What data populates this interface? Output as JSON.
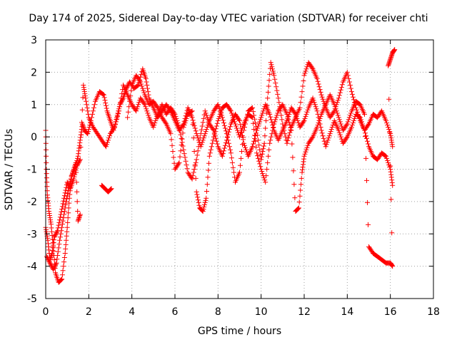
{
  "chart_data": {
    "type": "scatter",
    "title": "Day 174 of 2025, Sidereal Day-to-day VTEC variation (SDTVAR) for receiver chti",
    "xlabel": "GPS time / hours",
    "ylabel": "SDTVAR / TECUs",
    "xlim": [
      0,
      18
    ],
    "ylim": [
      -5,
      3
    ],
    "xticks": [
      "0",
      "2",
      "4",
      "6",
      "8",
      "10",
      "12",
      "14",
      "16",
      "18"
    ],
    "yticks": [
      "-5",
      "-4",
      "-3",
      "-2",
      "-1",
      "0",
      "1",
      "2",
      "3"
    ],
    "grid": true,
    "marker": "+",
    "series": [
      {
        "name": "SDTVAR trace A",
        "color": "#ff0000",
        "points": [
          [
            0.0,
            0.2
          ],
          [
            0.03,
            -1.0
          ],
          [
            0.08,
            -1.8
          ],
          [
            0.15,
            -2.3
          ],
          [
            0.25,
            -2.7
          ],
          [
            0.35,
            -3.4
          ],
          [
            0.45,
            -4.2
          ],
          [
            0.6,
            -4.5
          ],
          [
            0.75,
            -4.4
          ],
          [
            0.9,
            -3.6
          ],
          [
            1.0,
            -2.8
          ],
          [
            1.1,
            -1.9
          ],
          [
            1.2,
            -1.2
          ],
          [
            1.35,
            -1.0
          ],
          [
            1.5,
            -0.6
          ],
          [
            1.6,
            -0.1
          ],
          [
            1.7,
            0.4
          ],
          [
            1.8,
            0.2
          ],
          [
            1.95,
            0.1
          ],
          [
            2.1,
            0.5
          ],
          [
            2.3,
            1.1
          ],
          [
            2.5,
            1.4
          ],
          [
            2.7,
            1.3
          ],
          [
            2.85,
            0.8
          ],
          [
            3.0,
            0.5
          ],
          [
            3.15,
            0.2
          ],
          [
            3.3,
            0.6
          ],
          [
            3.45,
            1.0
          ],
          [
            3.6,
            1.2
          ],
          [
            3.75,
            1.5
          ],
          [
            3.9,
            1.7
          ],
          [
            4.1,
            1.5
          ],
          [
            4.3,
            1.6
          ],
          [
            4.5,
            2.1
          ],
          [
            4.65,
            1.8
          ],
          [
            4.8,
            1.2
          ],
          [
            5.0,
            0.9
          ],
          [
            5.2,
            0.6
          ],
          [
            5.4,
            0.8
          ],
          [
            5.6,
            1.0
          ],
          [
            5.8,
            0.8
          ],
          [
            6.0,
            0.5
          ],
          [
            6.2,
            0.2
          ],
          [
            6.4,
            0.4
          ],
          [
            6.6,
            0.9
          ],
          [
            6.8,
            0.6
          ],
          [
            7.0,
            0.1
          ],
          [
            7.2,
            -0.3
          ],
          [
            7.4,
            0.1
          ],
          [
            7.6,
            0.5
          ],
          [
            7.8,
            0.8
          ],
          [
            8.0,
            1.0
          ],
          [
            8.2,
            0.6
          ],
          [
            8.4,
            0.1
          ],
          [
            8.6,
            -0.5
          ],
          [
            8.8,
            -1.4
          ],
          [
            9.0,
            -1.1
          ],
          [
            9.2,
            0.2
          ],
          [
            9.4,
            0.8
          ],
          [
            9.6,
            0.9
          ],
          [
            9.8,
            0.2
          ],
          [
            10.0,
            -0.7
          ],
          [
            10.15,
            -0.2
          ],
          [
            10.3,
            1.2
          ],
          [
            10.45,
            2.3
          ],
          [
            10.6,
            1.9
          ],
          [
            10.8,
            1.2
          ],
          [
            11.0,
            0.4
          ],
          [
            11.2,
            -0.2
          ],
          [
            11.4,
            0.3
          ],
          [
            11.6,
            0.6
          ],
          [
            11.8,
            0.9
          ],
          [
            12.0,
            1.9
          ],
          [
            12.2,
            2.3
          ],
          [
            12.4,
            2.1
          ],
          [
            12.6,
            1.8
          ],
          [
            12.8,
            1.3
          ],
          [
            13.0,
            0.9
          ],
          [
            13.2,
            0.6
          ],
          [
            13.4,
            0.8
          ],
          [
            13.6,
            1.2
          ],
          [
            13.8,
            1.7
          ],
          [
            14.0,
            2.0
          ],
          [
            14.2,
            1.4
          ],
          [
            14.4,
            0.9
          ],
          [
            14.6,
            0.5
          ],
          [
            14.8,
            0.2
          ],
          [
            15.0,
            0.4
          ],
          [
            15.2,
            0.7
          ],
          [
            15.4,
            0.6
          ],
          [
            15.6,
            0.8
          ],
          [
            15.8,
            0.5
          ],
          [
            16.0,
            0.1
          ],
          [
            16.1,
            -0.3
          ]
        ]
      },
      {
        "name": "SDTVAR trace B",
        "color": "#ff0000",
        "points": [
          [
            0.0,
            -2.8
          ],
          [
            0.1,
            -3.2
          ],
          [
            0.2,
            -3.8
          ],
          [
            0.3,
            -3.6
          ],
          [
            0.4,
            -3.1
          ],
          [
            0.55,
            -2.9
          ],
          [
            0.7,
            -2.4
          ],
          [
            0.85,
            -1.9
          ],
          [
            1.0,
            -1.4
          ],
          [
            1.15,
            -1.6
          ],
          [
            1.3,
            -1.3
          ],
          [
            1.45,
            -0.9
          ],
          [
            1.6,
            -0.7
          ],
          [
            1.75,
            1.6
          ],
          [
            1.85,
            1.2
          ],
          [
            2.0,
            0.6
          ],
          [
            2.2,
            0.3
          ],
          [
            2.4,
            0.1
          ],
          [
            2.6,
            -0.1
          ],
          [
            2.8,
            -0.3
          ],
          [
            3.0,
            0.1
          ],
          [
            3.2,
            0.3
          ],
          [
            3.4,
            0.8
          ],
          [
            3.6,
            1.6
          ],
          [
            3.8,
            1.3
          ],
          [
            4.0,
            1.0
          ],
          [
            4.2,
            0.8
          ],
          [
            4.4,
            1.2
          ],
          [
            4.6,
            1.0
          ],
          [
            4.8,
            0.6
          ],
          [
            5.0,
            0.3
          ],
          [
            5.2,
            0.7
          ],
          [
            5.4,
            1.0
          ],
          [
            5.6,
            0.7
          ],
          [
            5.8,
            0.9
          ],
          [
            6.0,
            0.7
          ],
          [
            6.2,
            0.3
          ],
          [
            6.4,
            -0.4
          ],
          [
            6.6,
            -1.1
          ],
          [
            6.8,
            -1.3
          ],
          [
            7.0,
            -0.7
          ],
          [
            7.2,
            0.1
          ],
          [
            7.4,
            0.8
          ],
          [
            7.6,
            0.4
          ],
          [
            7.8,
            0.2
          ],
          [
            8.0,
            -0.3
          ],
          [
            8.2,
            -0.6
          ],
          [
            8.4,
            -0.1
          ],
          [
            8.6,
            0.4
          ],
          [
            8.8,
            0.7
          ],
          [
            9.0,
            0.5
          ],
          [
            9.2,
            -0.2
          ],
          [
            9.4,
            -0.6
          ],
          [
            9.6,
            -0.3
          ],
          [
            9.8,
            0.2
          ],
          [
            10.0,
            0.6
          ],
          [
            10.2,
            1.0
          ],
          [
            10.4,
            0.7
          ],
          [
            10.6,
            0.2
          ],
          [
            10.8,
            -0.1
          ],
          [
            11.0,
            0.2
          ],
          [
            11.2,
            0.5
          ],
          [
            11.4,
            0.9
          ],
          [
            11.6,
            0.7
          ],
          [
            11.8,
            0.3
          ],
          [
            12.0,
            0.5
          ],
          [
            12.2,
            0.9
          ],
          [
            12.4,
            1.2
          ],
          [
            12.6,
            0.8
          ],
          [
            12.8,
            0.2
          ],
          [
            13.0,
            -0.3
          ],
          [
            13.2,
            0.1
          ],
          [
            13.4,
            0.5
          ],
          [
            13.6,
            0.2
          ],
          [
            13.8,
            -0.2
          ],
          [
            14.0,
            0.0
          ],
          [
            14.2,
            0.3
          ],
          [
            14.4,
            0.7
          ],
          [
            14.6,
            0.6
          ],
          [
            14.8,
            0.2
          ],
          [
            15.0,
            -0.3
          ],
          [
            15.2,
            -0.6
          ],
          [
            15.4,
            -0.7
          ],
          [
            15.6,
            -0.5
          ],
          [
            15.8,
            -0.6
          ],
          [
            16.0,
            -1.0
          ],
          [
            16.1,
            -1.5
          ]
        ]
      },
      {
        "name": "SDTVAR trace C",
        "color": "#ff0000",
        "points": [
          [
            0.05,
            -3.7
          ],
          [
            0.2,
            -3.9
          ],
          [
            0.35,
            -4.1
          ],
          [
            0.5,
            -3.9
          ],
          [
            0.65,
            -3.2
          ],
          [
            0.8,
            -2.6
          ],
          [
            0.95,
            -2.0
          ],
          [
            1.1,
            -1.5
          ],
          [
            1.25,
            -1.1
          ],
          [
            1.4,
            -0.8
          ],
          [
            1.5,
            -2.6
          ],
          [
            1.6,
            -2.4
          ],
          [
            2.6,
            -1.5
          ],
          [
            2.75,
            -1.6
          ],
          [
            2.9,
            -1.7
          ],
          [
            3.05,
            -1.6
          ],
          [
            3.8,
            0.6
          ],
          [
            4.0,
            1.6
          ],
          [
            4.2,
            1.9
          ],
          [
            4.4,
            1.7
          ],
          [
            4.6,
            1.3
          ],
          [
            4.8,
            1.0
          ],
          [
            5.0,
            1.1
          ],
          [
            5.2,
            0.9
          ],
          [
            5.4,
            0.6
          ],
          [
            5.6,
            0.4
          ],
          [
            5.8,
            0.1
          ],
          [
            6.0,
            -1.0
          ],
          [
            6.2,
            -0.8
          ],
          [
            6.4,
            0.3
          ],
          [
            6.6,
            0.7
          ],
          [
            6.8,
            0.8
          ],
          [
            7.0,
            -1.7
          ],
          [
            7.15,
            -2.2
          ],
          [
            7.3,
            -2.3
          ],
          [
            7.45,
            -1.9
          ],
          [
            7.6,
            -0.6
          ],
          [
            7.8,
            0.0
          ],
          [
            8.0,
            0.5
          ],
          [
            8.2,
            0.9
          ],
          [
            8.4,
            1.0
          ],
          [
            8.6,
            0.8
          ],
          [
            8.8,
            0.4
          ],
          [
            9.0,
            0.0
          ],
          [
            9.2,
            0.4
          ],
          [
            9.4,
            0.7
          ],
          [
            9.6,
            0.6
          ],
          [
            9.8,
            -0.5
          ],
          [
            10.0,
            -1.0
          ],
          [
            10.2,
            -1.4
          ],
          [
            10.4,
            -0.2
          ],
          [
            10.6,
            0.4
          ],
          [
            10.8,
            0.8
          ],
          [
            11.0,
            1.0
          ],
          [
            11.2,
            0.7
          ],
          [
            11.4,
            0.2
          ],
          [
            11.6,
            -2.3
          ],
          [
            11.75,
            -2.2
          ],
          [
            11.9,
            -1.1
          ],
          [
            12.0,
            -0.6
          ],
          [
            12.2,
            -0.2
          ],
          [
            12.4,
            0.0
          ],
          [
            12.6,
            0.3
          ],
          [
            12.8,
            0.7
          ],
          [
            13.0,
            1.0
          ],
          [
            13.2,
            1.3
          ],
          [
            13.4,
            1.0
          ],
          [
            13.6,
            0.6
          ],
          [
            13.8,
            0.2
          ],
          [
            14.0,
            0.4
          ],
          [
            14.2,
            0.8
          ],
          [
            14.4,
            1.1
          ],
          [
            14.6,
            1.0
          ],
          [
            14.8,
            0.7
          ],
          [
            15.0,
            -3.4
          ],
          [
            15.2,
            -3.6
          ],
          [
            15.4,
            -3.7
          ],
          [
            15.6,
            -3.8
          ],
          [
            15.8,
            -3.9
          ],
          [
            16.0,
            -3.9
          ],
          [
            16.1,
            -4.0
          ],
          [
            15.9,
            2.2
          ],
          [
            16.0,
            2.4
          ],
          [
            16.1,
            2.6
          ],
          [
            16.2,
            2.7
          ]
        ]
      }
    ]
  }
}
